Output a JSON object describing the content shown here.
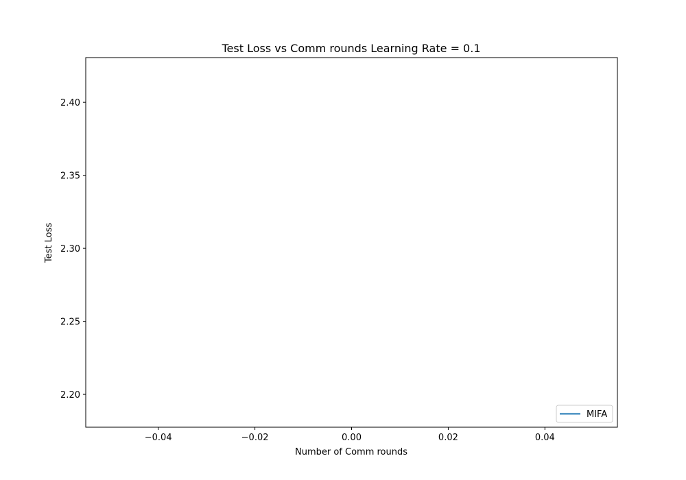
{
  "chart_data": {
    "type": "line",
    "title": "Test Loss vs Comm rounds Learning Rate = 0.1",
    "xlabel": "Number of Comm rounds",
    "ylabel": "Test Loss",
    "xlim": [
      -0.055,
      0.055
    ],
    "ylim": [
      2.1775,
      2.4306
    ],
    "xticks": [
      -0.04,
      -0.02,
      0.0,
      0.02,
      0.04
    ],
    "xtick_labels": [
      "−0.04",
      "−0.02",
      "0.00",
      "0.02",
      "0.04"
    ],
    "yticks": [
      2.2,
      2.25,
      2.3,
      2.35,
      2.4
    ],
    "ytick_labels": [
      "2.20",
      "2.25",
      "2.30",
      "2.35",
      "2.40"
    ],
    "grid": false,
    "legend_position": "lower-right",
    "series": [
      {
        "name": "MIFA",
        "color": "#1f77b4",
        "x": [],
        "y": []
      }
    ]
  }
}
